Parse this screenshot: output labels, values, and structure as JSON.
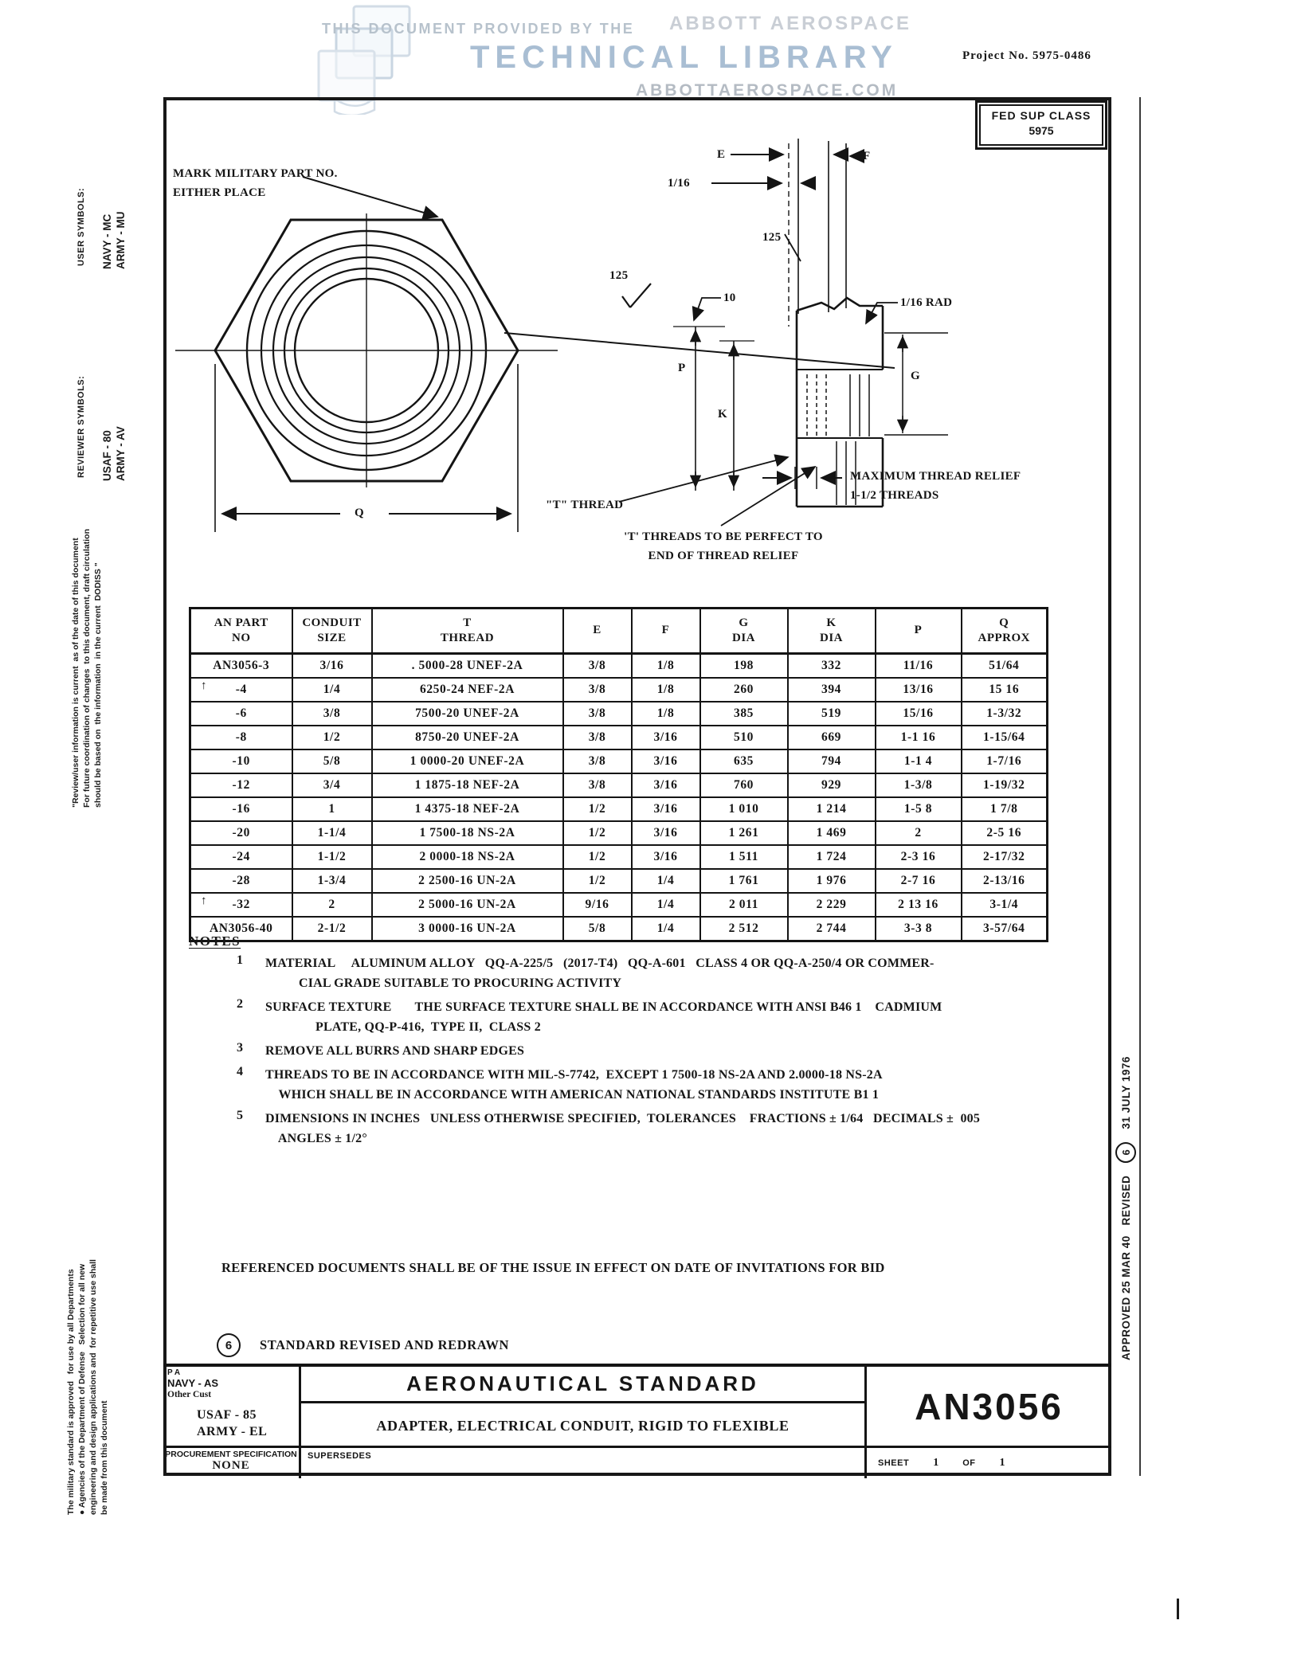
{
  "watermark": {
    "provided_by": "THIS DOCUMENT PROVIDED BY THE",
    "brand": "ABBOTT AEROSPACE",
    "title": "TECHNICAL LIBRARY",
    "url": "ABBOTTAEROSPACE.COM"
  },
  "header": {
    "project_no": "Project No. 5975-0486",
    "fed_sup_class_label": "FED SUP CLASS",
    "fed_sup_class_value": "5975"
  },
  "margins": {
    "user_symbols_label": "USER SYMBOLS:",
    "user_symbols_value": "NAVY - MC\nARMY - MU",
    "reviewer_symbols_label": "REVIEWER SYMBOLS:",
    "reviewer_symbols_value": "USAF - 80\nARMY - AV",
    "review_note": "\"Review/user information is current  as of the date of this document\nFor future coordination of changes  to this document, draft circulation\nshould be based on  the information  in the current  DODISS \"",
    "military_note": "The military standard is approved   for use by all Departments\n● Agencies of the Department of Defense   Selection for all new\nengineering and design applications and  for repetitive use shall\nbe made from this document",
    "approved_note": "APPROVED 25 MAR 40   REVISED",
    "revision_circle": "6",
    "revision_date": "31 JULY 1976"
  },
  "drawing": {
    "mark_note": "MARK MILITARY PART NO.\nEITHER PLACE",
    "labels": {
      "e": "E",
      "f": "F",
      "one_sixteenth": "1/16",
      "finish_125_a": "125",
      "finish_125_b": "125",
      "ten": "10",
      "rad": "1/16 RAD",
      "p": "P",
      "k": "K",
      "g": "G",
      "q": "Q",
      "t_thread": "\"T\" THREAD",
      "max_relief": "MAXIMUM THREAD RELIEF\n1-1/2 THREADS",
      "perfect_threads": "'T' THREADS TO BE PERFECT TO\nEND OF THREAD RELIEF"
    }
  },
  "table": {
    "headers": [
      "AN PART\nNO",
      "CONDUIT\nSIZE",
      "T\nTHREAD",
      "E",
      "F",
      "G\nDIA",
      "K\nDIA",
      "P",
      "Q\nAPPROX"
    ],
    "flag_rows": [
      1,
      10
    ],
    "flag_glyph": "↑",
    "rows": [
      [
        "AN3056-3",
        "3/16",
        ". 5000-28 UNEF-2A",
        "3/8",
        "1/8",
        "198",
        "332",
        "11/16",
        "51/64"
      ],
      [
        "-4",
        "1/4",
        "6250-24 NEF-2A",
        "3/8",
        "1/8",
        "260",
        "394",
        "13/16",
        "15 16"
      ],
      [
        "-6",
        "3/8",
        "7500-20 UNEF-2A",
        "3/8",
        "1/8",
        "385",
        "519",
        "15/16",
        "1-3/32"
      ],
      [
        "-8",
        "1/2",
        "8750-20 UNEF-2A",
        "3/8",
        "3/16",
        "510",
        "669",
        "1-1 16",
        "1-15/64"
      ],
      [
        "-10",
        "5/8",
        "1 0000-20 UNEF-2A",
        "3/8",
        "3/16",
        "635",
        "794",
        "1-1 4",
        "1-7/16"
      ],
      [
        "-12",
        "3/4",
        "1 1875-18 NEF-2A",
        "3/8",
        "3/16",
        "760",
        "929",
        "1-3/8",
        "1-19/32"
      ],
      [
        "-16",
        "1",
        "1 4375-18 NEF-2A",
        "1/2",
        "3/16",
        "1 010",
        "1 214",
        "1-5 8",
        "1 7/8"
      ],
      [
        "-20",
        "1-1/4",
        "1 7500-18 NS-2A",
        "1/2",
        "3/16",
        "1 261",
        "1 469",
        "2",
        "2-5 16"
      ],
      [
        "-24",
        "1-1/2",
        "2 0000-18 NS-2A",
        "1/2",
        "3/16",
        "1 511",
        "1 724",
        "2-3 16",
        "2-17/32"
      ],
      [
        "-28",
        "1-3/4",
        "2 2500-16 UN-2A",
        "1/2",
        "1/4",
        "1 761",
        "1 976",
        "2-7 16",
        "2-13/16"
      ],
      [
        "-32",
        "2",
        "2 5000-16 UN-2A",
        "9/16",
        "1/4",
        "2 011",
        "2 229",
        "2 13 16",
        "3-1/4"
      ],
      [
        "AN3056-40",
        "2-1/2",
        "3 0000-16 UN-2A",
        "5/8",
        "1/4",
        "2 512",
        "2 744",
        "3-3 8",
        "3-57/64"
      ]
    ]
  },
  "notes": {
    "title": "NOTES",
    "items": [
      {
        "num": "1",
        "text": "MATERIAL     ALUMINUM ALLOY   QQ-A-225/5   (2017-T4)   QQ-A-601   CLASS 4 OR QQ-A-250/4 OR COMMER-\n          CIAL GRADE SUITABLE TO PROCURING ACTIVITY"
      },
      {
        "num": "2",
        "text": "SURFACE TEXTURE       THE SURFACE TEXTURE SHALL BE IN ACCORDANCE WITH ANSI B46 1    CADMIUM\n               PLATE, QQ-P-416,  TYPE II,  CLASS 2"
      },
      {
        "num": "3",
        "text": "REMOVE ALL BURRS AND SHARP EDGES"
      },
      {
        "num": "4",
        "text": "THREADS TO BE IN ACCORDANCE WITH MIL-S-7742,  EXCEPT 1 7500-18 NS-2A AND 2.0000-18 NS-2A\n    WHICH SHALL BE IN ACCORDANCE WITH AMERICAN NATIONAL STANDARDS INSTITUTE B1 1"
      },
      {
        "num": "5",
        "text": "DIMENSIONS IN INCHES   UNLESS OTHERWISE SPECIFIED,  TOLERANCES    FRACTIONS ± 1/64   DECIMALS ±  005\n    ANGLES ± 1/2°"
      }
    ],
    "referenced": "REFERENCED DOCUMENTS SHALL BE OF THE ISSUE IN EFFECT ON DATE OF INVITATIONS FOR BID",
    "revision_circle": "6",
    "revision_text": "STANDARD REVISED AND REDRAWN"
  },
  "title_block": {
    "pa": "P A",
    "navy": "NAVY - AS",
    "other": "Other Cust",
    "usaf": "USAF - 85",
    "army": "ARMY - EL",
    "standard_title": "AERONAUTICAL  STANDARD",
    "part_title": "ADAPTER, ELECTRICAL CONDUIT, RIGID TO FLEXIBLE",
    "part_number": "AN3056",
    "procurement_label": "PROCUREMENT SPECIFICATION",
    "procurement_value": "NONE",
    "supersedes_label": "SUPERSEDES",
    "sheet_label": "SHEET",
    "sheet_num": "1",
    "of_label": "OF",
    "sheet_total": "1"
  }
}
